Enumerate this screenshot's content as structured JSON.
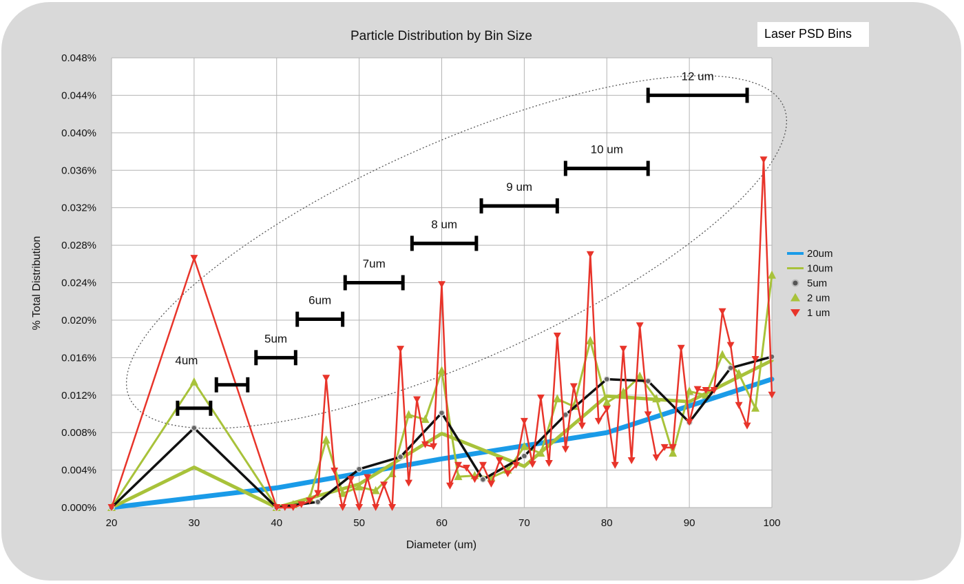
{
  "chart_data": {
    "type": "line",
    "title": "Particle Distribution by Bin Size",
    "xlabel": "Diameter (um)",
    "ylabel": "% Total Distribution",
    "xlim": [
      20,
      100
    ],
    "ylim": [
      0,
      0.048
    ],
    "x_ticks": [
      20,
      30,
      40,
      50,
      60,
      70,
      80,
      90,
      100
    ],
    "y_ticks": [
      0.0,
      0.004,
      0.008,
      0.012,
      0.016,
      0.02,
      0.024,
      0.028,
      0.032,
      0.036,
      0.04,
      0.044,
      0.048
    ],
    "y_tick_labels": [
      "0.000%",
      "0.004%",
      "0.008%",
      "0.012%",
      "0.016%",
      "0.020%",
      "0.024%",
      "0.028%",
      "0.032%",
      "0.036%",
      "0.040%",
      "0.044%",
      "0.048%"
    ],
    "grid": true,
    "legend_position": "right",
    "series": [
      {
        "name": "20um",
        "color": "#1a9be8",
        "marker": "none",
        "x": [
          20,
          40,
          60,
          80,
          100
        ],
        "y": [
          0.0,
          0.0021,
          0.0052,
          0.008,
          0.0137
        ]
      },
      {
        "name": "10um",
        "color": "#a8c23a",
        "marker": "none",
        "x": [
          20,
          30,
          40,
          50,
          60,
          70,
          80,
          90,
          100
        ],
        "y": [
          0.0,
          0.0043,
          0.0,
          0.0025,
          0.0079,
          0.0044,
          0.0119,
          0.0113,
          0.0157
        ]
      },
      {
        "name": "5um",
        "color": "#111111",
        "marker": "circle",
        "x": [
          20,
          30,
          40,
          45,
          50,
          55,
          60,
          65,
          70,
          75,
          80,
          85,
          90,
          95,
          100
        ],
        "y": [
          0.0,
          0.0085,
          0.0,
          0.0006,
          0.0041,
          0.0054,
          0.0101,
          0.003,
          0.0055,
          0.0099,
          0.0137,
          0.0135,
          0.0091,
          0.0149,
          0.0161
        ]
      },
      {
        "name": "2 um",
        "color": "#a8c23a",
        "marker": "triangle-up",
        "x": [
          20,
          30,
          40,
          42,
          44,
          46,
          48,
          50,
          52,
          54,
          56,
          58,
          60,
          62,
          64,
          66,
          68,
          70,
          72,
          74,
          76,
          78,
          80,
          82,
          84,
          86,
          88,
          90,
          92,
          94,
          96,
          98,
          100
        ],
        "y": [
          0.0,
          0.0134,
          0.0,
          0.0003,
          0.001,
          0.0072,
          0.0015,
          0.0022,
          0.0018,
          0.0036,
          0.0099,
          0.0094,
          0.0146,
          0.0033,
          0.0034,
          0.0032,
          0.004,
          0.0065,
          0.0058,
          0.0116,
          0.0108,
          0.0178,
          0.0112,
          0.0123,
          0.014,
          0.0116,
          0.0058,
          0.0124,
          0.012,
          0.0163,
          0.0143,
          0.0106,
          0.0248
        ]
      },
      {
        "name": "1 um",
        "color": "#e8342a",
        "marker": "triangle-down",
        "x": [
          20,
          30,
          40,
          41,
          42,
          43,
          44,
          45,
          46,
          47,
          48,
          49,
          50,
          51,
          52,
          53,
          54,
          55,
          56,
          57,
          58,
          59,
          60,
          61,
          62,
          63,
          64,
          65,
          66,
          67,
          68,
          69,
          70,
          71,
          72,
          73,
          74,
          75,
          76,
          77,
          78,
          79,
          80,
          81,
          82,
          83,
          84,
          85,
          86,
          87,
          88,
          89,
          90,
          91,
          92,
          93,
          94,
          95,
          96,
          97,
          98,
          99,
          100
        ],
        "y": [
          0.0,
          0.0266,
          0.0,
          0.0,
          0.0,
          0.0003,
          0.0007,
          0.0015,
          0.0138,
          0.0039,
          0.0,
          0.003,
          0.0,
          0.0032,
          0.0,
          0.0024,
          0.0,
          0.0169,
          0.0026,
          0.0115,
          0.0067,
          0.0065,
          0.0238,
          0.0023,
          0.0045,
          0.0042,
          0.003,
          0.0045,
          0.0025,
          0.005,
          0.0036,
          0.0045,
          0.0092,
          0.0046,
          0.0117,
          0.0047,
          0.0183,
          0.0062,
          0.0129,
          0.0087,
          0.027,
          0.0092,
          0.0105,
          0.0045,
          0.0169,
          0.005,
          0.0194,
          0.0099,
          0.0053,
          0.0064,
          0.0064,
          0.017,
          0.0091,
          0.0126,
          0.0125,
          0.0125,
          0.0209,
          0.0173,
          0.0109,
          0.0087,
          0.0158,
          0.0371,
          0.012
        ]
      }
    ],
    "annotations": {
      "box_label": "Laser PSD Bins",
      "bins": [
        {
          "label": "4um",
          "x_start": 28,
          "x_end": 32,
          "y": 0.0106
        },
        {
          "label": "",
          "x_start": 32.7,
          "x_end": 36.5,
          "y": 0.0131
        },
        {
          "label": "5um",
          "x_start": 37.5,
          "x_end": 42.3,
          "y": 0.016
        },
        {
          "label": "6um",
          "x_start": 42.5,
          "x_end": 48,
          "y": 0.0201
        },
        {
          "label": "7um",
          "x_start": 48.3,
          "x_end": 55.3,
          "y": 0.024
        },
        {
          "label": "8 um",
          "x_start": 56.4,
          "x_end": 64.2,
          "y": 0.0282
        },
        {
          "label": "9 um",
          "x_start": 64.8,
          "x_end": 74,
          "y": 0.0322
        },
        {
          "label": "10 um",
          "x_start": 75,
          "x_end": 85,
          "y": 0.0362
        },
        {
          "label": "12 um",
          "x_start": 85,
          "x_end": 97,
          "y": 0.044
        }
      ]
    }
  }
}
